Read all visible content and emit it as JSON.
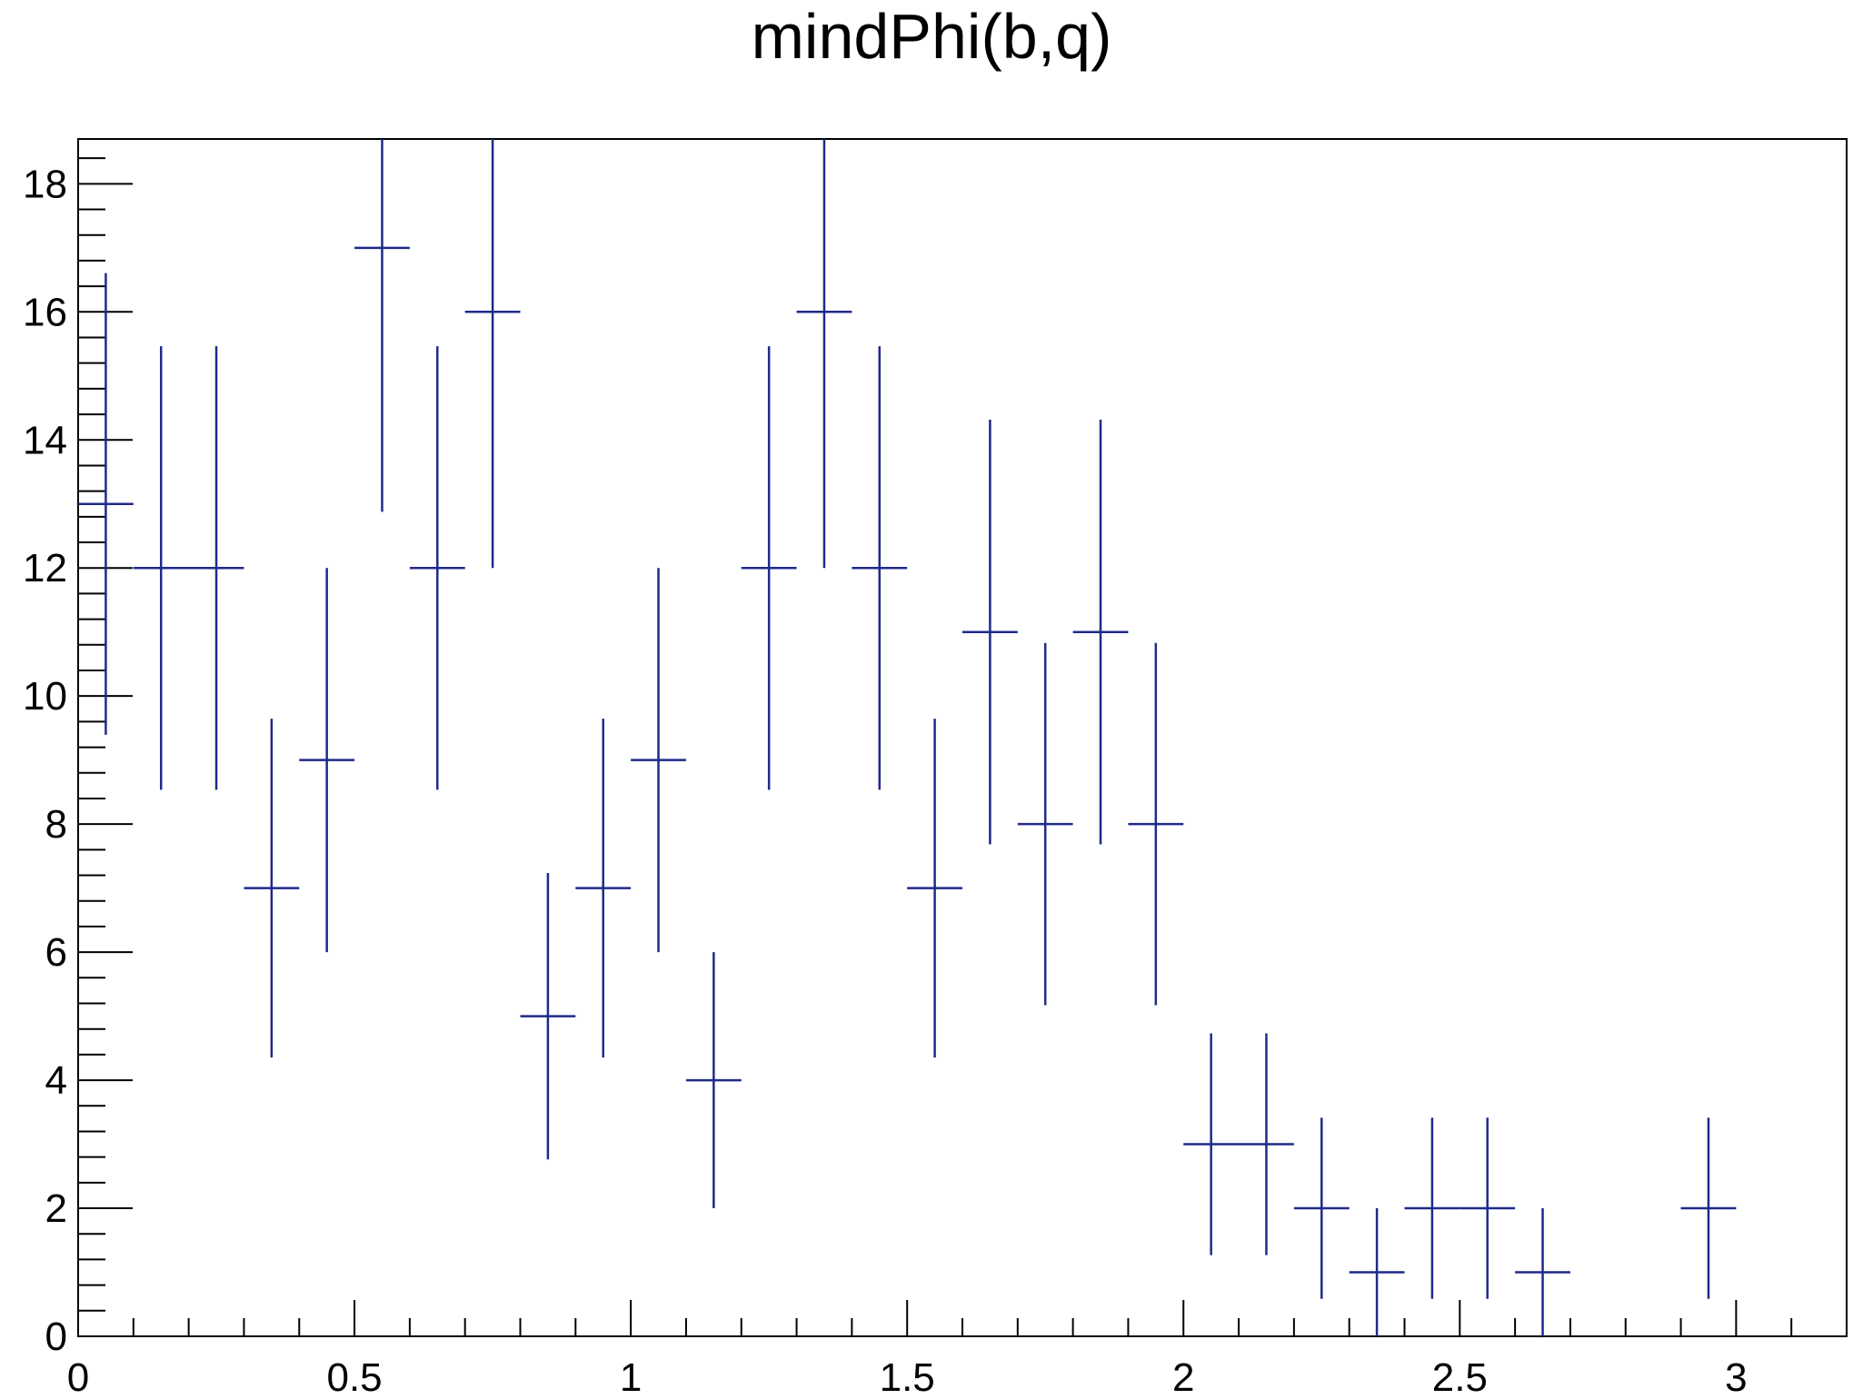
{
  "chart_data": {
    "type": "scatter",
    "style": "histogram-error-bars",
    "title": "mindPhi(b,q)",
    "xlabel": "",
    "ylabel": "",
    "xlim": [
      0,
      3.2
    ],
    "ylim": [
      0,
      18.7
    ],
    "bin_width": 0.1,
    "x_ticks": [
      "0",
      "0.5",
      "1",
      "1.5",
      "2",
      "2.5",
      "3"
    ],
    "x_tick_values": [
      0,
      0.5,
      1,
      1.5,
      2,
      2.5,
      3
    ],
    "y_ticks": [
      "0",
      "2",
      "4",
      "6",
      "8",
      "10",
      "12",
      "14",
      "16",
      "18"
    ],
    "y_tick_values": [
      0,
      2,
      4,
      6,
      8,
      10,
      12,
      14,
      16,
      18
    ],
    "grid": false,
    "color": "#1f2a8a",
    "series": [
      {
        "x": [
          0.05,
          0.15,
          0.25,
          0.35,
          0.45,
          0.55,
          0.65,
          0.75,
          0.85,
          0.95,
          1.05,
          1.15,
          1.25,
          1.35,
          1.45,
          1.55,
          1.65,
          1.75,
          1.85,
          1.95,
          2.05,
          2.15,
          2.25,
          2.35,
          2.45,
          2.55,
          2.65,
          2.95
        ],
        "y": [
          13,
          12,
          12,
          7,
          9,
          17,
          12,
          16,
          5,
          7,
          9,
          4,
          12,
          16,
          12,
          7,
          11,
          8,
          11,
          8,
          3,
          3,
          2,
          1,
          2,
          2,
          1,
          2
        ]
      }
    ]
  }
}
